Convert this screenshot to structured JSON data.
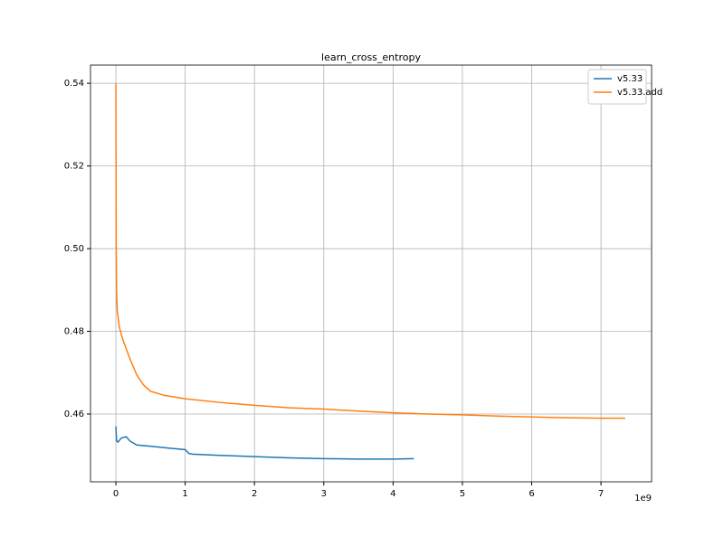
{
  "chart_data": {
    "type": "line",
    "title": "learn_cross_entropy",
    "x_offset_label": "1e9",
    "xlim": [
      -0.366,
      7.73
    ],
    "xticks": [
      0,
      1,
      2,
      3,
      4,
      5,
      6,
      7
    ],
    "ylim": [
      0.4436,
      0.5444
    ],
    "yticks": [
      0.46,
      0.48,
      {
        "value": 0.5,
        "label": "0.50"
      },
      0.52,
      0.54
    ],
    "grid": true,
    "legend": "upper right",
    "series": [
      {
        "name": "v5.33",
        "color": "#1f77b4",
        "x": [
          0,
          0.01,
          0.03,
          0.08,
          0.15,
          0.2,
          0.3,
          0.5,
          0.8,
          1.0,
          1.05,
          1.1,
          1.5,
          2,
          2.5,
          3,
          3.5,
          4,
          4.3
        ],
        "values": [
          0.457,
          0.4535,
          0.4532,
          0.4542,
          0.4545,
          0.4535,
          0.4525,
          0.4522,
          0.4517,
          0.4514,
          0.4505,
          0.4503,
          0.45,
          0.4497,
          0.4494,
          0.4492,
          0.4491,
          0.4491,
          0.4492
        ]
      },
      {
        "name": "v5.33.add",
        "color": "#ff7f0e",
        "x": [
          0,
          0.005,
          0.01,
          0.02,
          0.05,
          0.1,
          0.2,
          0.3,
          0.4,
          0.5,
          0.7,
          1,
          1.5,
          2,
          2.5,
          3,
          3.5,
          4,
          4.5,
          5,
          5.5,
          6,
          6.5,
          7,
          7.35
        ],
        "values": [
          0.54,
          0.5,
          0.49,
          0.485,
          0.481,
          0.478,
          0.4735,
          0.4695,
          0.467,
          0.4655,
          0.4645,
          0.4637,
          0.4628,
          0.4621,
          0.4615,
          0.4612,
          0.4607,
          0.4603,
          0.46,
          0.4598,
          0.4595,
          0.4593,
          0.4591,
          0.459,
          0.459
        ]
      }
    ]
  }
}
